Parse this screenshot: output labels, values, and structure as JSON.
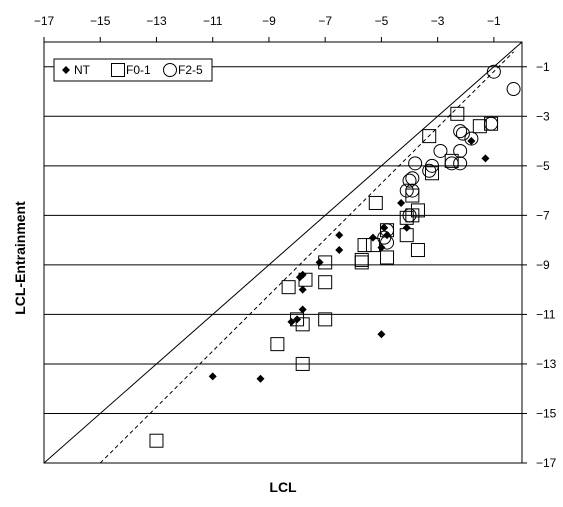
{
  "chart_data": {
    "type": "scatter",
    "xlabel": "LCL",
    "ylabel": "LCL-Entrainment",
    "xlim": [
      -17,
      0
    ],
    "ylim": [
      -17,
      0
    ],
    "x_ticks": [
      -17,
      -15,
      -13,
      -11,
      -9,
      -7,
      -5,
      -3,
      -1
    ],
    "y_ticks": [
      -1,
      -3,
      -5,
      -7,
      -9,
      -11,
      -13,
      -15,
      -17
    ],
    "x_axis_position": "top",
    "y_axis_position": "right",
    "grid": "horizontal",
    "legend_position": "top-left",
    "reference_lines": [
      {
        "name": "1:1",
        "style": "solid",
        "points": [
          [
            -17,
            -17
          ],
          [
            0,
            0
          ]
        ]
      },
      {
        "name": "fit",
        "style": "dashed",
        "points": [
          [
            -15,
            -17
          ],
          [
            -0.3,
            -0.4
          ]
        ]
      }
    ],
    "series": [
      {
        "name": "NT",
        "marker": "diamond-filled",
        "points": [
          [
            -1.3,
            -4.7
          ],
          [
            -1.8,
            -4.0
          ],
          [
            -4.3,
            -6.5
          ],
          [
            -4.1,
            -7.5
          ],
          [
            -4.8,
            -7.8
          ],
          [
            -4.9,
            -7.5
          ],
          [
            -5.0,
            -8.3
          ],
          [
            -5.3,
            -7.9
          ],
          [
            -6.5,
            -7.8
          ],
          [
            -6.5,
            -8.4
          ],
          [
            -7.2,
            -8.9
          ],
          [
            -7.8,
            -9.4
          ],
          [
            -7.9,
            -9.5
          ],
          [
            -7.8,
            -10.0
          ],
          [
            -7.8,
            -10.8
          ],
          [
            -8.2,
            -11.3
          ],
          [
            -8.0,
            -11.2
          ],
          [
            -5.0,
            -11.8
          ],
          [
            -11.0,
            -13.5
          ],
          [
            -9.3,
            -13.6
          ]
        ]
      },
      {
        "name": "F0-1",
        "marker": "square-open",
        "points": [
          [
            -1.1,
            -3.3
          ],
          [
            -1.5,
            -3.4
          ],
          [
            -2.3,
            -2.9
          ],
          [
            -2.5,
            -4.8
          ],
          [
            -3.3,
            -3.8
          ],
          [
            -3.2,
            -5.3
          ],
          [
            -3.7,
            -6.8
          ],
          [
            -3.9,
            -6.2
          ],
          [
            -3.9,
            -7.0
          ],
          [
            -4.1,
            -7.1
          ],
          [
            -4.1,
            -7.8
          ],
          [
            -3.7,
            -8.4
          ],
          [
            -4.8,
            -7.6
          ],
          [
            -4.8,
            -8.7
          ],
          [
            -5.2,
            -6.5
          ],
          [
            -5.3,
            -8.2
          ],
          [
            -5.6,
            -8.2
          ],
          [
            -5.7,
            -8.8
          ],
          [
            -5.7,
            -8.9
          ],
          [
            -7.0,
            -8.9
          ],
          [
            -7.0,
            -9.7
          ],
          [
            -7.7,
            -9.6
          ],
          [
            -8.3,
            -9.9
          ],
          [
            -7.8,
            -11.4
          ],
          [
            -7.0,
            -11.2
          ],
          [
            -8.0,
            -11.2
          ],
          [
            -8.7,
            -12.2
          ],
          [
            -7.8,
            -13.0
          ],
          [
            -13.0,
            -16.1
          ]
        ]
      },
      {
        "name": "F2-5",
        "marker": "circle-open",
        "points": [
          [
            -1.0,
            -1.2
          ],
          [
            -0.3,
            -1.9
          ],
          [
            -1.1,
            -3.3
          ],
          [
            -1.8,
            -3.9
          ],
          [
            -2.2,
            -3.6
          ],
          [
            -2.1,
            -3.7
          ],
          [
            -2.2,
            -4.4
          ],
          [
            -2.2,
            -4.9
          ],
          [
            -2.5,
            -4.9
          ],
          [
            -2.9,
            -4.4
          ],
          [
            -3.2,
            -5.0
          ],
          [
            -3.3,
            -5.2
          ],
          [
            -3.8,
            -4.9
          ],
          [
            -3.9,
            -5.5
          ],
          [
            -3.9,
            -6.0
          ],
          [
            -4.0,
            -5.6
          ],
          [
            -4.1,
            -6.0
          ],
          [
            -4.0,
            -7.0
          ],
          [
            -4.8,
            -7.6
          ],
          [
            -4.8,
            -8.1
          ],
          [
            -4.9,
            -7.9
          ]
        ]
      }
    ]
  }
}
